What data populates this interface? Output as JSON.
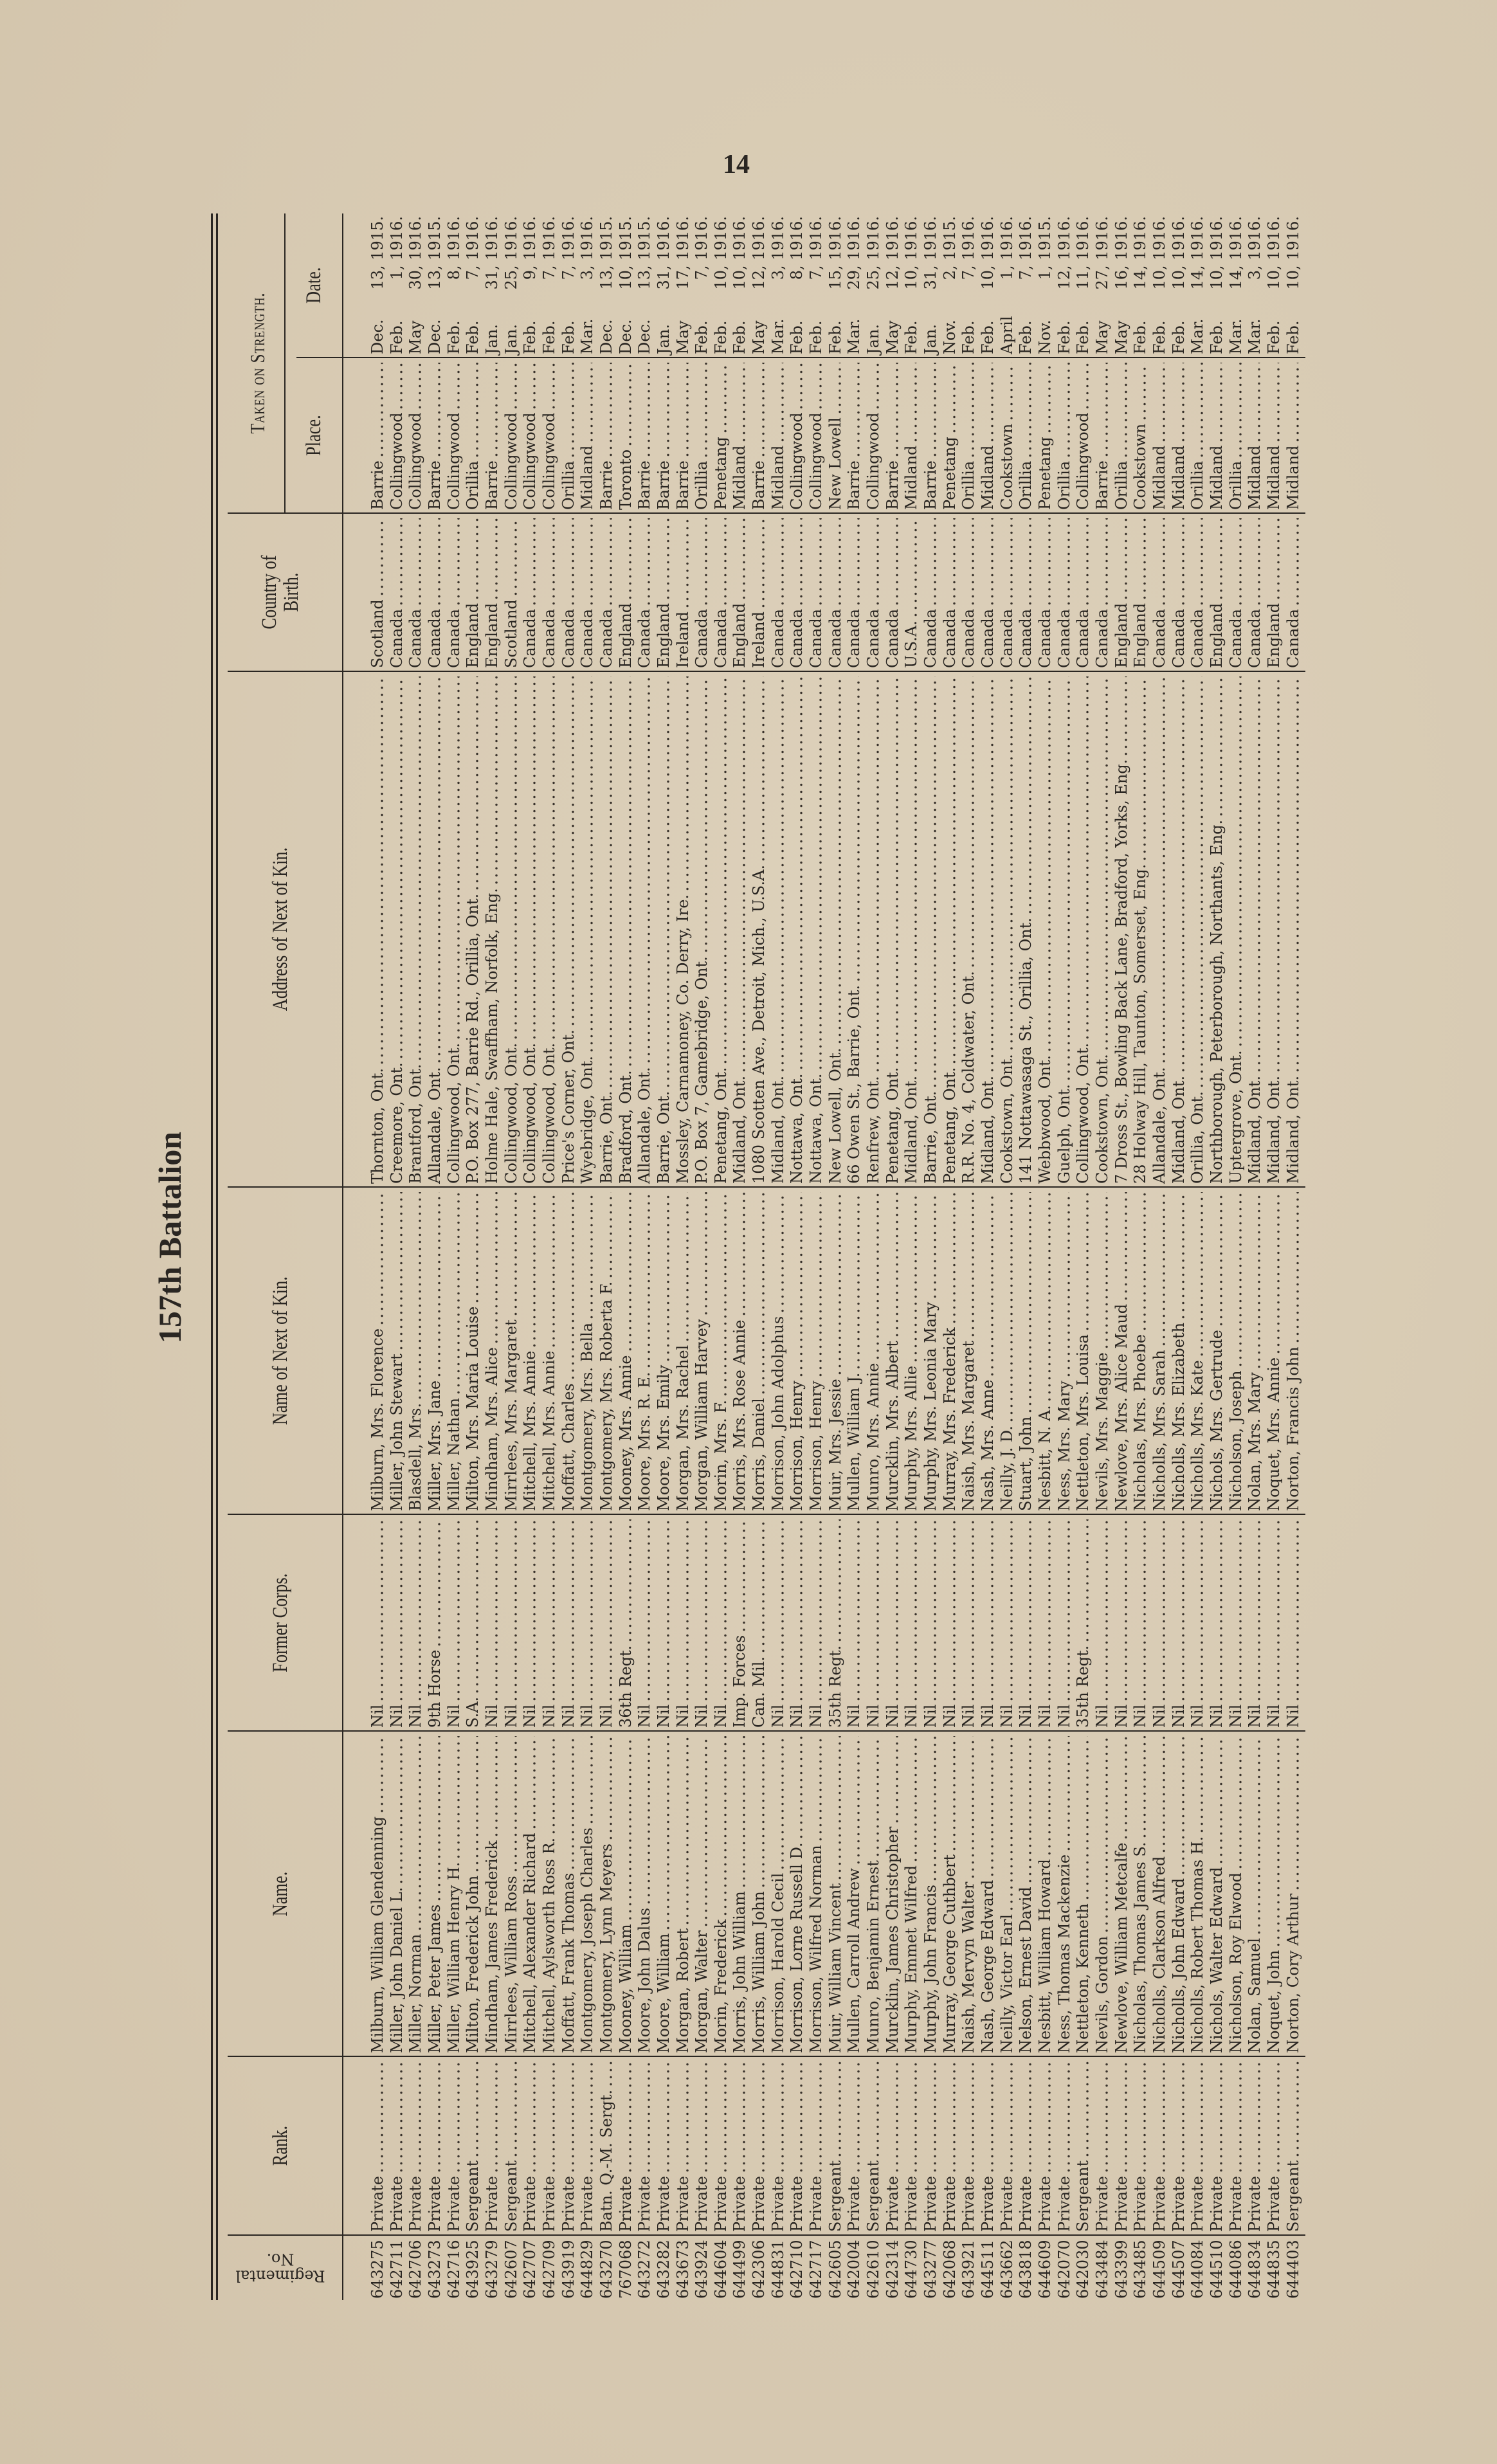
{
  "page_number": "14",
  "title": "157th Battalion",
  "headers": {
    "regimental_no_line1": "Regimental",
    "regimental_no_line2": "No.",
    "rank": "Rank.",
    "name": "Name.",
    "former_corps": "Former Corps.",
    "next_of_kin_name": "Name of Next of Kin.",
    "next_of_kin_address": "Address of Next of Kin.",
    "country_line1": "Country of",
    "country_line2": "Birth.",
    "taken_on_strength": "Taken on Strength.",
    "place": "Place.",
    "date": "Date."
  },
  "rows": [
    {
      "no": "643275",
      "rank": "Private",
      "name": "Milburn, William Glendenning",
      "corps": "Nil",
      "kin": "Milburn, Mrs. Florence",
      "address": "Thornton, Ont.",
      "country": "Scotland",
      "place": "Barrie",
      "month": "Dec.",
      "day": "13, 1915."
    },
    {
      "no": "642711",
      "rank": "Private",
      "name": "Miller, John Daniel L.",
      "corps": "Nil",
      "kin": "Miller, John Stewart",
      "address": "Creemore, Ont.",
      "country": "Canada",
      "place": "Collingwood",
      "month": "Feb.",
      "day": "1, 1916."
    },
    {
      "no": "642706",
      "rank": "Private",
      "name": "Miller, Norman",
      "corps": "Nil",
      "kin": "Blasdell, Mrs.",
      "address": "Brantford, Ont.",
      "country": "Canada",
      "place": "Collingwood",
      "month": "May",
      "day": "30, 1916."
    },
    {
      "no": "643273",
      "rank": "Private",
      "name": "Miller, Peter James",
      "corps": "9th Horse",
      "kin": "Miller, Mrs. Jane",
      "address": "Allandale, Ont.",
      "country": "Canada",
      "place": "Barrie",
      "month": "Dec.",
      "day": "13, 1915."
    },
    {
      "no": "642716",
      "rank": "Private",
      "name": "Miller, William Henry H.",
      "corps": "Nil",
      "kin": "Miller, Nathan",
      "address": "Collingwood, Ont.",
      "country": "Canada",
      "place": "Collingwood",
      "month": "Feb.",
      "day": "8, 1916."
    },
    {
      "no": "643925",
      "rank": "Sergeant",
      "name": "Milton, Frederick John",
      "corps": "S.A.",
      "kin": "Milton, Mrs. Maria Louise",
      "address": "P.O. Box 277, Barrie Rd., Orillia, Ont.",
      "country": "England",
      "place": "Orillia",
      "month": "Feb.",
      "day": "7, 1916."
    },
    {
      "no": "643279",
      "rank": "Private",
      "name": "Mindham, James Frederick",
      "corps": "Nil",
      "kin": "Mindham, Mrs. Alice",
      "address": "Holme Hale, Swaffham, Norfolk, Eng.",
      "country": "England",
      "place": "Barrie",
      "month": "Jan.",
      "day": "31, 1916."
    },
    {
      "no": "642607",
      "rank": "Sergeant",
      "name": "Mirrlees, William Ross",
      "corps": "Nil",
      "kin": "Mirrlees, Mrs. Margaret",
      "address": "Collingwood, Ont.",
      "country": "Scotland",
      "place": "Collingwood",
      "month": "Jan.",
      "day": "25, 1916."
    },
    {
      "no": "642707",
      "rank": "Private",
      "name": "Mitchell, Alexander Richard",
      "corps": "Nil",
      "kin": "Mitchell, Mrs. Annie",
      "address": "Collingwood, Ont.",
      "country": "Canada",
      "place": "Collingwood",
      "month": "Feb.",
      "day": "9, 1916."
    },
    {
      "no": "642709",
      "rank": "Private",
      "name": "Mitchell, Aylsworth Ross R.",
      "corps": "Nil",
      "kin": "Mitchell, Mrs. Annie",
      "address": "Collingwood, Ont.",
      "country": "Canada",
      "place": "Collingwood",
      "month": "Feb.",
      "day": "7, 1916."
    },
    {
      "no": "643919",
      "rank": "Private",
      "name": "Moffatt, Frank Thomas",
      "corps": "Nil",
      "kin": "Moffatt, Charles",
      "address": "Price's Corner, Ont.",
      "country": "Canada",
      "place": "Orillia",
      "month": "Feb.",
      "day": "7, 1916."
    },
    {
      "no": "644829",
      "rank": "Private",
      "name": "Montgomery, Joseph Charles",
      "corps": "Nil",
      "kin": "Montgomery, Mrs. Bella",
      "address": "Wyebridge, Ont.",
      "country": "Canada",
      "place": "Midland",
      "month": "Mar.",
      "day": "3, 1916."
    },
    {
      "no": "643270",
      "rank": "Batn. Q.-M. Sergt.",
      "name": "Montgomery, Lynn Meyers",
      "corps": "Nil",
      "kin": "Montgomery, Mrs. Roberta F.",
      "address": "Barrie, Ont.",
      "country": "Canada",
      "place": "Barrie",
      "month": "Dec.",
      "day": "13, 1915."
    },
    {
      "no": "767068",
      "rank": "Private",
      "name": "Mooney, William",
      "corps": "36th Regt.",
      "kin": "Mooney, Mrs. Annie",
      "address": "Bradford, Ont.",
      "country": "England",
      "place": "Toronto",
      "month": "Dec.",
      "day": "10, 1915."
    },
    {
      "no": "643272",
      "rank": "Private",
      "name": "Moore, John Dalus",
      "corps": "Nil",
      "kin": "Moore, Mrs. R. E.",
      "address": "Allandale, Ont.",
      "country": "Canada",
      "place": "Barrie",
      "month": "Dec.",
      "day": "13, 1915."
    },
    {
      "no": "643282",
      "rank": "Private",
      "name": "Moore, William",
      "corps": "Nil",
      "kin": "Moore, Mrs. Emily",
      "address": "Barrie, Ont.",
      "country": "England",
      "place": "Barrie",
      "month": "Jan.",
      "day": "31, 1916."
    },
    {
      "no": "643673",
      "rank": "Private",
      "name": "Morgan, Robert",
      "corps": "Nil",
      "kin": "Morgan, Mrs. Rachel",
      "address": "Mossley, Carnamoney, Co. Derry, Ire.",
      "country": "Ireland",
      "place": "Barrie",
      "month": "May",
      "day": "17, 1916."
    },
    {
      "no": "643924",
      "rank": "Private",
      "name": "Morgan, Walter",
      "corps": "Nil",
      "kin": "Morgan, William Harvey",
      "address": "P.O. Box 7, Gamebridge, Ont.",
      "country": "Canada",
      "place": "Orillia",
      "month": "Feb.",
      "day": "7, 1916."
    },
    {
      "no": "644604",
      "rank": "Private",
      "name": "Morin, Frederick",
      "corps": "Nil",
      "kin": "Morin, Mrs. F.",
      "address": "Penetang, Ont.",
      "country": "Canada",
      "place": "Penetang",
      "month": "Feb.",
      "day": "10, 1916."
    },
    {
      "no": "644499",
      "rank": "Private",
      "name": "Morris, John William",
      "corps": "Imp. Forces",
      "kin": "Morris, Mrs. Rose Annie",
      "address": "Midland, Ont.",
      "country": "England",
      "place": "Midland",
      "month": "Feb.",
      "day": "10, 1916."
    },
    {
      "no": "642306",
      "rank": "Private",
      "name": "Morris, William John",
      "corps": "Can. Mil.",
      "kin": "Morris, Daniel",
      "address": "1080 Scotten Ave., Detroit, Mich., U.S.A.",
      "country": "Ireland",
      "place": "Barrie",
      "month": "May",
      "day": "12, 1916."
    },
    {
      "no": "644831",
      "rank": "Private",
      "name": "Morrison, Harold Cecil",
      "corps": "Nil",
      "kin": "Morrison, John Adolphus",
      "address": "Midland, Ont.",
      "country": "Canada",
      "place": "Midland",
      "month": "Mar.",
      "day": "3, 1916."
    },
    {
      "no": "642710",
      "rank": "Private",
      "name": "Morrison, Lorne Russell D.",
      "corps": "Nil",
      "kin": "Morrison, Henry",
      "address": "Nottawa, Ont.",
      "country": "Canada",
      "place": "Collingwood",
      "month": "Feb.",
      "day": "8, 1916."
    },
    {
      "no": "642717",
      "rank": "Private",
      "name": "Morrison, Wilfred Norman",
      "corps": "Nil",
      "kin": "Morrison, Henry",
      "address": "Nottawa, Ont.",
      "country": "Canada",
      "place": "Collingwood",
      "month": "Feb.",
      "day": "7, 1916."
    },
    {
      "no": "642605",
      "rank": "Sergeant",
      "name": "Muir, William Vincent",
      "corps": "35th Regt.",
      "kin": "Muir, Mrs. Jessie",
      "address": "New Lowell, Ont.",
      "country": "Canada",
      "place": "New Lowell",
      "month": "Feb.",
      "day": "15, 1916."
    },
    {
      "no": "642004",
      "rank": "Private",
      "name": "Mullen, Carroll Andrew",
      "corps": "Nil",
      "kin": "Mullen, William J.",
      "address": "66 Owen St., Barrie, Ont.",
      "country": "Canada",
      "place": "Barrie",
      "month": "Mar.",
      "day": "29, 1916."
    },
    {
      "no": "642610",
      "rank": "Sergeant",
      "name": "Munro, Benjamin Ernest",
      "corps": "Nil",
      "kin": "Munro, Mrs. Annie",
      "address": "Renfrew, Ont.",
      "country": "Canada",
      "place": "Collingwood",
      "month": "Jan.",
      "day": "25, 1916."
    },
    {
      "no": "642314",
      "rank": "Private",
      "name": "Murcklin, James Christopher",
      "corps": "Nil",
      "kin": "Murcklin, Mrs. Albert",
      "address": "Penetang, Ont.",
      "country": "Canada",
      "place": "Barrie",
      "month": "May",
      "day": "12, 1916."
    },
    {
      "no": "644730",
      "rank": "Private",
      "name": "Murphy, Emmet Wilfred",
      "corps": "Nil",
      "kin": "Murphy, Mrs. Allie",
      "address": "Midland, Ont.",
      "country": "U.S.A.",
      "place": "Midland",
      "month": "Feb.",
      "day": "10, 1916."
    },
    {
      "no": "643277",
      "rank": "Private",
      "name": "Murphy, John Francis",
      "corps": "Nil",
      "kin": "Murphy, Mrs. Leonia Mary",
      "address": "Barrie, Ont.",
      "country": "Canada",
      "place": "Barrie",
      "month": "Jan.",
      "day": "31, 1916."
    },
    {
      "no": "642068",
      "rank": "Private",
      "name": "Murray, George Cuthbert",
      "corps": "Nil",
      "kin": "Murray, Mrs. Frederick",
      "address": "Penetang, Ont.",
      "country": "Canada",
      "place": "Penetang",
      "month": "Nov.",
      "day": "2, 1915."
    },
    {
      "no": "643921",
      "rank": "Private",
      "name": "Naish, Mervyn Walter",
      "corps": "Nil",
      "kin": "Naish, Mrs. Margaret",
      "address": "R.R. No. 4, Coldwater, Ont.",
      "country": "Canada",
      "place": "Orillia",
      "month": "Feb.",
      "day": "7, 1916."
    },
    {
      "no": "644511",
      "rank": "Private",
      "name": "Nash, George Edward",
      "corps": "Nil",
      "kin": "Nash, Mrs. Anne",
      "address": "Midland, Ont.",
      "country": "Canada",
      "place": "Midland",
      "month": "Feb.",
      "day": "10, 1916."
    },
    {
      "no": "643662",
      "rank": "Private",
      "name": "Neilly, Victor Earl",
      "corps": "Nil",
      "kin": "Neilly, J. D.",
      "address": "Cookstown, Ont.",
      "country": "Canada",
      "place": "Cookstown",
      "month": "April",
      "day": "1, 1916."
    },
    {
      "no": "643818",
      "rank": "Private",
      "name": "Nelson, Ernest David",
      "corps": "Nil",
      "kin": "Stuart, John",
      "address": "141 Nottawasaga St., Orillia, Ont.",
      "country": "Canada",
      "place": "Orillia",
      "month": "Feb.",
      "day": "7, 1916."
    },
    {
      "no": "644609",
      "rank": "Private",
      "name": "Nesbitt, William Howard",
      "corps": "Nil",
      "kin": "Nesbitt, N. A.",
      "address": "Webbwood, Ont.",
      "country": "Canada",
      "place": "Penetang",
      "month": "Nov.",
      "day": "1, 1915."
    },
    {
      "no": "642070",
      "rank": "Private",
      "name": "Ness, Thomas Mackenzie",
      "corps": "Nil",
      "kin": "Ness, Mrs. Mary",
      "address": "Guelph, Ont.",
      "country": "Canada",
      "place": "Orillia",
      "month": "Feb.",
      "day": "12, 1916."
    },
    {
      "no": "642030",
      "rank": "Sergeant",
      "name": "Nettleton, Kenneth",
      "corps": "35th Regt.",
      "kin": "Nettleton, Mrs. Louisa",
      "address": "Collingwood, Ont.",
      "country": "Canada",
      "place": "Collingwood",
      "month": "Feb.",
      "day": "11, 1916."
    },
    {
      "no": "643484",
      "rank": "Private",
      "name": "Nevils, Gordon",
      "corps": "Nil",
      "kin": "Nevils, Mrs. Maggie",
      "address": "Cookstown, Ont.",
      "country": "Canada",
      "place": "Barrie",
      "month": "May",
      "day": "27, 1916."
    },
    {
      "no": "643399",
      "rank": "Private",
      "name": "Newlove, William Metcalfe",
      "corps": "Nil",
      "kin": "Newlove, Mrs. Alice Maud",
      "address": "7 Dross St., Bowling Back Lane, Bradford, Yorks, Eng.",
      "country": "England",
      "place": "Orillia",
      "month": "May",
      "day": "16, 1916."
    },
    {
      "no": "643485",
      "rank": "Private",
      "name": "Nicholas, Thomas James S.",
      "corps": "Nil",
      "kin": "Nicholas, Mrs. Phoebe",
      "address": "28 Holway Hill, Taunton, Somerset, Eng.",
      "country": "England",
      "place": "Cookstown",
      "month": "Feb.",
      "day": "14, 1916."
    },
    {
      "no": "644509",
      "rank": "Private",
      "name": "Nicholls, Clarkson Alfred",
      "corps": "Nil",
      "kin": "Nicholls, Mrs. Sarah",
      "address": "Allandale, Ont.",
      "country": "Canada",
      "place": "Midland",
      "month": "Feb.",
      "day": "10, 1916."
    },
    {
      "no": "644507",
      "rank": "Private",
      "name": "Nicholls, John Edward",
      "corps": "Nil",
      "kin": "Nicholls, Mrs. Elizabeth",
      "address": "Midland, Ont.",
      "country": "Canada",
      "place": "Midland",
      "month": "Feb.",
      "day": "10, 1916."
    },
    {
      "no": "644084",
      "rank": "Private",
      "name": "Nicholls, Robert Thomas H.",
      "corps": "Nil",
      "kin": "Nicholls, Mrs. Kate",
      "address": "Orillia, Ont.",
      "country": "Canada",
      "place": "Orillia",
      "month": "Mar.",
      "day": "14, 1916."
    },
    {
      "no": "644510",
      "rank": "Private",
      "name": "Nichols, Walter Edward",
      "corps": "Nil",
      "kin": "Nichols, Mrs. Gertrude",
      "address": "Northborough, Peterborough, Northants, Eng.",
      "country": "England",
      "place": "Midland",
      "month": "Feb.",
      "day": "10, 1916."
    },
    {
      "no": "644086",
      "rank": "Private",
      "name": "Nicholson, Roy Elwood",
      "corps": "Nil",
      "kin": "Nicholson, Joseph",
      "address": "Uptergrove, Ont.",
      "country": "Canada",
      "place": "Orillia",
      "month": "Mar.",
      "day": "14, 1916."
    },
    {
      "no": "644834",
      "rank": "Private",
      "name": "Nolan, Samuel",
      "corps": "Nil",
      "kin": "Nolan, Mrs. Mary",
      "address": "Midland, Ont.",
      "country": "Canada",
      "place": "Midland",
      "month": "Mar.",
      "day": "3, 1916."
    },
    {
      "no": "644835",
      "rank": "Private",
      "name": "Noquet, John",
      "corps": "Nil",
      "kin": "Noquet, Mrs. Annie",
      "address": "Midland, Ont.",
      "country": "England",
      "place": "Midland",
      "month": "Feb.",
      "day": "10, 1916."
    },
    {
      "no": "644403",
      "rank": "Sergeant",
      "name": "Norton, Cory Arthur",
      "corps": "Nil",
      "kin": "Norton, Francis John",
      "address": "Midland, Ont.",
      "country": "Canada",
      "place": "Midland",
      "month": "Feb.",
      "day": "10, 1916."
    }
  ]
}
